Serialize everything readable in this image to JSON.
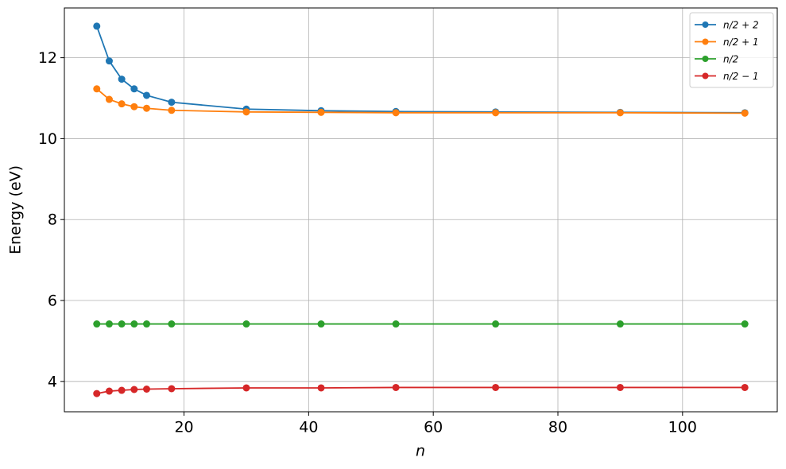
{
  "chart_data": {
    "type": "line",
    "x_label": "n",
    "y_label": "Energy (eV)",
    "x": [
      6,
      8,
      10,
      12,
      14,
      18,
      30,
      42,
      54,
      70,
      90,
      110
    ],
    "series": [
      {
        "name": "n/2 + 2",
        "color": "#1f77b4",
        "values": [
          12.78,
          11.92,
          11.47,
          11.23,
          11.07,
          10.9,
          10.73,
          10.69,
          10.67,
          10.66,
          10.65,
          10.64
        ]
      },
      {
        "name": "n/2 + 1",
        "color": "#ff7f0e",
        "values": [
          11.23,
          10.97,
          10.86,
          10.79,
          10.75,
          10.7,
          10.66,
          10.65,
          10.64,
          10.64,
          10.64,
          10.63
        ]
      },
      {
        "name": "n/2",
        "color": "#2ca02c",
        "values": [
          5.42,
          5.42,
          5.42,
          5.42,
          5.42,
          5.42,
          5.42,
          5.42,
          5.42,
          5.42,
          5.42,
          5.42
        ]
      },
      {
        "name": "n/2 − 1",
        "color": "#d62728",
        "values": [
          3.7,
          3.76,
          3.78,
          3.8,
          3.81,
          3.82,
          3.84,
          3.84,
          3.85,
          3.85,
          3.85,
          3.85
        ]
      }
    ],
    "xlim": [
      0.8,
      115.2
    ],
    "ylim": [
      3.25,
      13.23
    ],
    "xticks": [
      20,
      40,
      60,
      80,
      100
    ],
    "yticks": [
      4,
      6,
      8,
      10,
      12
    ],
    "grid": true,
    "legend": "upper right"
  }
}
